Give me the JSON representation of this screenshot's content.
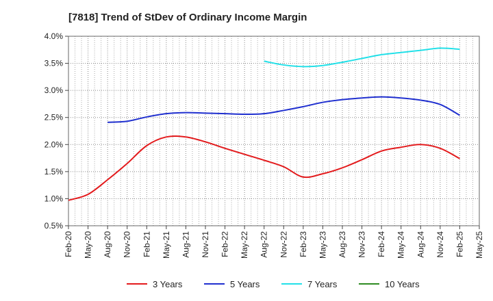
{
  "chart_data": {
    "type": "line",
    "title": "[7818]  Trend of StDev of Ordinary Income Margin",
    "xlabel": "",
    "ylabel": "",
    "x_ticks": [
      "Feb-20",
      "May-20",
      "Aug-20",
      "Nov-20",
      "Feb-21",
      "May-21",
      "Aug-21",
      "Nov-21",
      "Feb-22",
      "May-22",
      "Aug-22",
      "Nov-22",
      "Feb-23",
      "May-23",
      "Aug-23",
      "Nov-23",
      "Feb-24",
      "May-24",
      "Aug-24",
      "Nov-24",
      "Feb-25",
      "May-25"
    ],
    "y_ticks": [
      "0.5%",
      "1.0%",
      "1.5%",
      "2.0%",
      "2.5%",
      "3.0%",
      "3.5%",
      "4.0%"
    ],
    "ylim": [
      0.5,
      4.0
    ],
    "grid": true,
    "legend_position": "bottom",
    "series": [
      {
        "name": "3 Years",
        "color": "#e31a1c",
        "x": [
          "Feb-20",
          "May-20",
          "Aug-20",
          "Nov-20",
          "Feb-21",
          "May-21",
          "Aug-21",
          "Nov-21",
          "Feb-22",
          "May-22",
          "Aug-22",
          "Nov-22",
          "Feb-23",
          "May-23",
          "Aug-23",
          "Nov-23",
          "Feb-24",
          "May-24",
          "Aug-24",
          "Nov-24",
          "Feb-25"
        ],
        "values": [
          0.97,
          1.08,
          1.35,
          1.65,
          1.98,
          2.14,
          2.14,
          2.05,
          1.93,
          1.82,
          1.71,
          1.59,
          1.4,
          1.46,
          1.57,
          1.72,
          1.88,
          1.95,
          2.0,
          1.93,
          1.74
        ]
      },
      {
        "name": "5 Years",
        "color": "#1f2fcf",
        "x": [
          "Aug-20",
          "Nov-20",
          "Feb-21",
          "May-21",
          "Aug-21",
          "Nov-21",
          "Feb-22",
          "May-22",
          "Aug-22",
          "Nov-22",
          "Feb-23",
          "May-23",
          "Aug-23",
          "Nov-23",
          "Feb-24",
          "May-24",
          "Aug-24",
          "Nov-24",
          "Feb-25"
        ],
        "values": [
          2.41,
          2.43,
          2.51,
          2.57,
          2.59,
          2.58,
          2.57,
          2.56,
          2.57,
          2.63,
          2.7,
          2.78,
          2.83,
          2.86,
          2.88,
          2.86,
          2.82,
          2.74,
          2.54
        ]
      },
      {
        "name": "7 Years",
        "color": "#22e0e8",
        "x": [
          "Aug-22",
          "Nov-22",
          "Feb-23",
          "May-23",
          "Aug-23",
          "Nov-23",
          "Feb-24",
          "May-24",
          "Aug-24",
          "Nov-24",
          "Feb-25"
        ],
        "values": [
          3.54,
          3.47,
          3.44,
          3.46,
          3.52,
          3.59,
          3.66,
          3.7,
          3.74,
          3.78,
          3.76
        ]
      },
      {
        "name": "10 Years",
        "color": "#2e8b22",
        "x": [],
        "values": []
      }
    ]
  }
}
